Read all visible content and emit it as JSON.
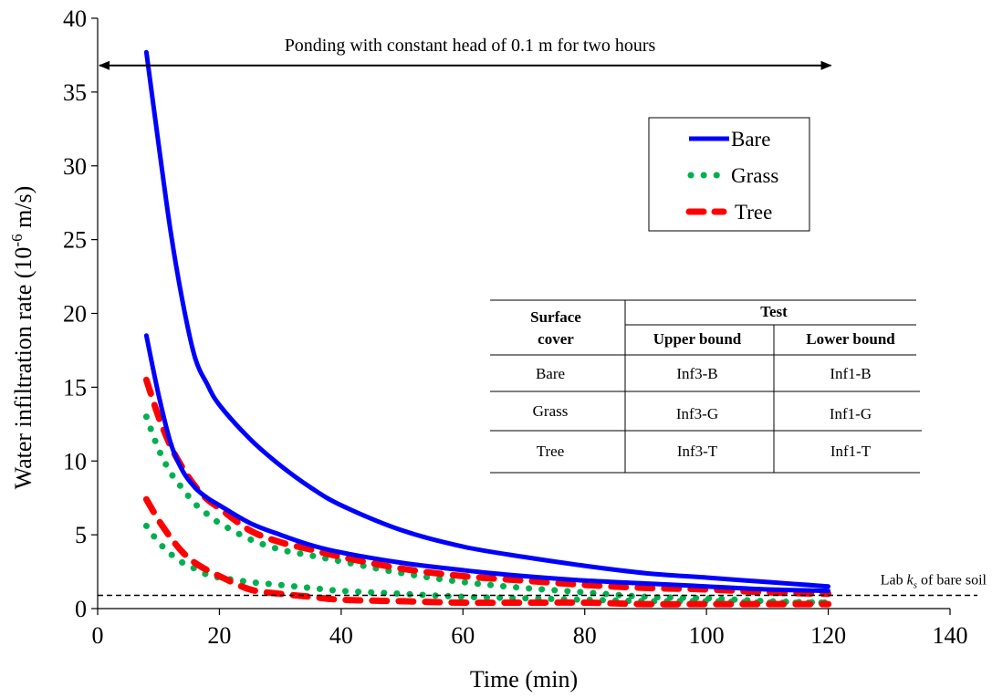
{
  "chart_data": {
    "type": "line",
    "xlabel": "Time (min)",
    "ylabel_main": "Water infiltration rate (10",
    "ylabel_sup": "-6",
    "ylabel_end": " m/s)",
    "xlim": [
      0,
      140
    ],
    "ylim": [
      0,
      40
    ],
    "xticks": [
      0,
      20,
      40,
      60,
      80,
      100,
      120,
      140
    ],
    "yticks": [
      0,
      5,
      10,
      15,
      20,
      25,
      30,
      35,
      40
    ],
    "grid": false,
    "annotation_ponding": "Ponding with constant head of 0.1 m for two hours",
    "ponding_range": [
      0,
      120
    ],
    "ponding_y": 36.8,
    "lab_ks": {
      "value": 0.9,
      "label_prefix": "Lab ",
      "label_k": "k",
      "label_sub": "s",
      "label_suffix": " of bare soil"
    },
    "legend": {
      "position": "top-right",
      "entries": [
        {
          "label": "Bare",
          "style": "solid",
          "color": "#0000ff"
        },
        {
          "label": "Grass",
          "style": "dotted",
          "color": "#00b050"
        },
        {
          "label": "Tree",
          "style": "dashed",
          "color": "#ff0000"
        }
      ]
    },
    "series": [
      {
        "cover": "Bare",
        "bound": "upper",
        "color": "#0000ff",
        "style": "solid",
        "x": [
          8,
          10,
          12,
          14,
          16,
          18,
          20,
          25,
          30,
          35,
          40,
          50,
          60,
          70,
          80,
          90,
          100,
          110,
          120
        ],
        "y": [
          37.7,
          31.5,
          25.5,
          20.7,
          17.0,
          15.2,
          13.8,
          11.5,
          9.7,
          8.2,
          7.0,
          5.3,
          4.2,
          3.5,
          2.9,
          2.4,
          2.1,
          1.8,
          1.5
        ]
      },
      {
        "cover": "Bare",
        "bound": "lower",
        "color": "#0000ff",
        "style": "solid",
        "x": [
          8,
          10,
          12,
          14,
          16,
          18,
          20,
          25,
          30,
          35,
          40,
          50,
          60,
          70,
          80,
          90,
          100,
          110,
          120
        ],
        "y": [
          18.5,
          14.5,
          11.2,
          9.3,
          8.2,
          7.5,
          7.0,
          5.8,
          5.0,
          4.3,
          3.8,
          3.1,
          2.6,
          2.2,
          1.9,
          1.7,
          1.5,
          1.3,
          1.2
        ]
      },
      {
        "cover": "Grass",
        "bound": "upper",
        "color": "#00b050",
        "style": "dotted",
        "x": [
          8,
          10,
          12,
          14,
          16,
          18,
          20,
          25,
          30,
          35,
          40,
          50,
          60,
          70,
          80,
          90,
          100,
          110,
          120
        ],
        "y": [
          13.0,
          10.8,
          9.2,
          8.1,
          7.1,
          6.4,
          5.8,
          4.7,
          4.0,
          3.6,
          3.2,
          2.4,
          1.8,
          1.4,
          1.1,
          0.8,
          0.7,
          0.5,
          0.4
        ]
      },
      {
        "cover": "Grass",
        "bound": "lower",
        "color": "#00b050",
        "style": "dotted",
        "x": [
          8,
          10,
          12,
          14,
          16,
          18,
          20,
          25,
          30,
          35,
          40,
          50,
          60,
          70,
          80,
          90,
          100,
          110,
          120
        ],
        "y": [
          5.6,
          4.5,
          3.7,
          3.1,
          2.7,
          2.3,
          2.1,
          1.8,
          1.6,
          1.4,
          1.2,
          1.0,
          0.8,
          0.7,
          0.6,
          0.5,
          0.5,
          0.4,
          0.4
        ]
      },
      {
        "cover": "Tree",
        "bound": "upper",
        "color": "#ff0000",
        "style": "dashed",
        "x": [
          8,
          10,
          12,
          14,
          16,
          18,
          20,
          25,
          30,
          35,
          40,
          50,
          60,
          70,
          80,
          90,
          100,
          110,
          120
        ],
        "y": [
          15.5,
          13.0,
          11.0,
          9.5,
          8.3,
          7.4,
          6.8,
          5.3,
          4.5,
          4.0,
          3.5,
          2.7,
          2.2,
          1.9,
          1.6,
          1.4,
          1.3,
          1.1,
          1.0
        ]
      },
      {
        "cover": "Tree",
        "bound": "lower",
        "color": "#ff0000",
        "style": "dashed",
        "x": [
          8,
          10,
          12,
          14,
          16,
          18,
          20,
          25,
          30,
          35,
          40,
          50,
          60,
          70,
          80,
          90,
          100,
          110,
          120
        ],
        "y": [
          7.4,
          6.0,
          4.8,
          3.8,
          3.1,
          2.6,
          2.2,
          1.3,
          1.0,
          0.8,
          0.6,
          0.5,
          0.4,
          0.4,
          0.4,
          0.3,
          0.3,
          0.3,
          0.3
        ]
      }
    ],
    "table": {
      "header_cover": [
        "Surface",
        "cover"
      ],
      "header_test": "Test",
      "header_upper": "Upper bound",
      "header_lower": "Lower bound",
      "rows": [
        {
          "cover": "Bare",
          "upper": "Inf3-B",
          "lower": "Inf1-B"
        },
        {
          "cover": "Grass",
          "upper": "Inf3-G",
          "lower": "Inf1-G"
        },
        {
          "cover": "Tree",
          "upper": "Inf3-T",
          "lower": "Inf1-T"
        }
      ]
    }
  }
}
